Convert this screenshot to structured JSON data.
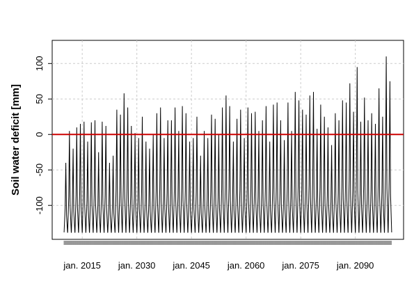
{
  "chart_data": {
    "type": "line",
    "title": "",
    "xlabel": "",
    "ylabel": "Soil water deficit [mm]",
    "x_range": [
      2010,
      2100
    ],
    "ylim": [
      -140,
      115
    ],
    "y_ticks": [
      -100,
      -50,
      0,
      50,
      100
    ],
    "x_tick_labels": [
      {
        "year": 2015,
        "label": "jan. 2015"
      },
      {
        "year": 2030,
        "label": "jan. 2030"
      },
      {
        "year": 2045,
        "label": "jan. 2045"
      },
      {
        "year": 2060,
        "label": "jan. 2060"
      },
      {
        "year": 2075,
        "label": "jan. 2075"
      },
      {
        "year": 2090,
        "label": "jan. 2090"
      }
    ],
    "grid": true,
    "reference_line": {
      "y": 0,
      "color": "#cc0000"
    },
    "series": [
      {
        "color": "#000000",
        "start_year": 2010,
        "frequency": "annual",
        "annual_min": -138,
        "annual_max": [
          -40,
          5,
          -20,
          10,
          15,
          18,
          -10,
          17,
          20,
          -25,
          18,
          12,
          -40,
          -30,
          35,
          28,
          58,
          38,
          12,
          2,
          -5,
          25,
          -10,
          -20,
          0,
          30,
          38,
          -5,
          20,
          20,
          38,
          5,
          40,
          30,
          -10,
          -5,
          25,
          -30,
          5,
          -5,
          28,
          22,
          0,
          38,
          55,
          40,
          -10,
          22,
          35,
          -5,
          38,
          30,
          32,
          5,
          20,
          40,
          -10,
          42,
          45,
          20,
          -8,
          45,
          5,
          60,
          48,
          35,
          28,
          55,
          60,
          8,
          42,
          25,
          10,
          -15,
          30,
          20,
          48,
          45,
          72,
          32,
          95,
          18,
          52,
          20,
          30,
          15,
          65,
          25,
          110,
          75
        ]
      }
    ]
  }
}
